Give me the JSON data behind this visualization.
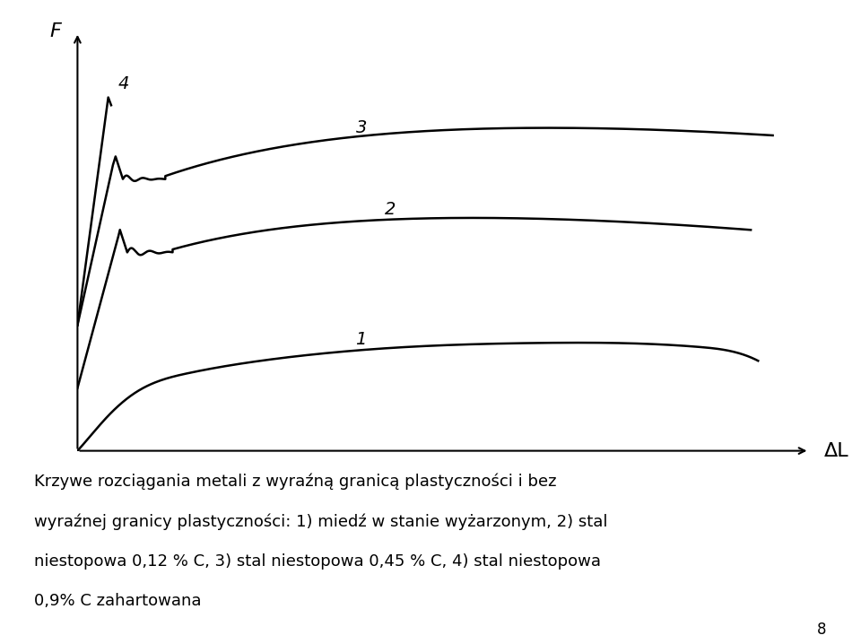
{
  "title": "",
  "xlabel": "ΔL",
  "ylabel": "F",
  "background_color": "#ffffff",
  "text_color": "#000000",
  "caption": "Krzywe rozciągania metali z wyraźną granicą plastyczności i bez wyraźnej granicy plastyczności: 1) miedź w stanie wyżarzonym, 2) stal niestopowa 0,12 % C, 3) stal niestopowa 0,45 % C, 4) stal niestopowa 0,9% C zahartowana",
  "page_number": "8",
  "line_color": "#000000",
  "line_width": 1.8
}
